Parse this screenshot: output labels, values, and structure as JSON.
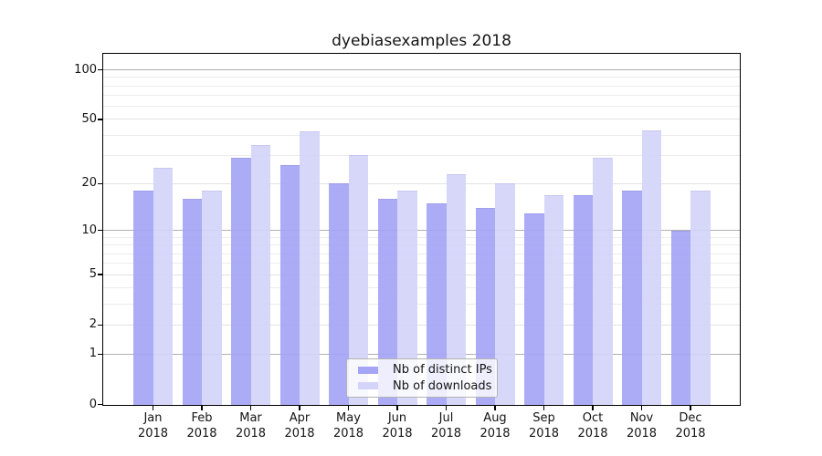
{
  "title": "dyebiasexamples 2018",
  "chart_data": {
    "type": "bar",
    "title": "dyebiasexamples 2018",
    "categories": [
      "Jan",
      "Feb",
      "Mar",
      "Apr",
      "May",
      "Jun",
      "Jul",
      "Aug",
      "Sep",
      "Oct",
      "Nov",
      "Dec"
    ],
    "year": "2018",
    "series": [
      {
        "name": "Nb of distinct IPs",
        "color": "#a5a5f6",
        "values": [
          18,
          16,
          29,
          26,
          20,
          16,
          15,
          14,
          13,
          17,
          18,
          10
        ]
      },
      {
        "name": "Nb of downloads",
        "color": "#d4d4fa",
        "values": [
          25,
          18,
          35,
          42,
          30,
          18,
          23,
          20,
          17,
          29,
          43,
          18
        ]
      }
    ],
    "xlabel": "",
    "ylabel": "",
    "yscale": "log1p",
    "ylim": [
      0,
      125
    ],
    "yticks": [
      0,
      1,
      2,
      5,
      10,
      20,
      50,
      100
    ],
    "grid": {
      "decade_lines": [
        1,
        10,
        100
      ],
      "decade_color": "#b0b0b0",
      "labeled_minor_lines": [
        2,
        5,
        20,
        50
      ],
      "labeled_minor_color": "#e3e3e3",
      "minor_lines": [
        3,
        4,
        6,
        7,
        8,
        9,
        30,
        40,
        60,
        70,
        80,
        90
      ],
      "minor_color": "#ececec",
      "legend_position": "lower center"
    }
  },
  "legend": {
    "items": [
      {
        "label": "Nb of distinct IPs",
        "color": "#a5a5f6"
      },
      {
        "label": "Nb of downloads",
        "color": "#d4d4fa"
      }
    ]
  }
}
